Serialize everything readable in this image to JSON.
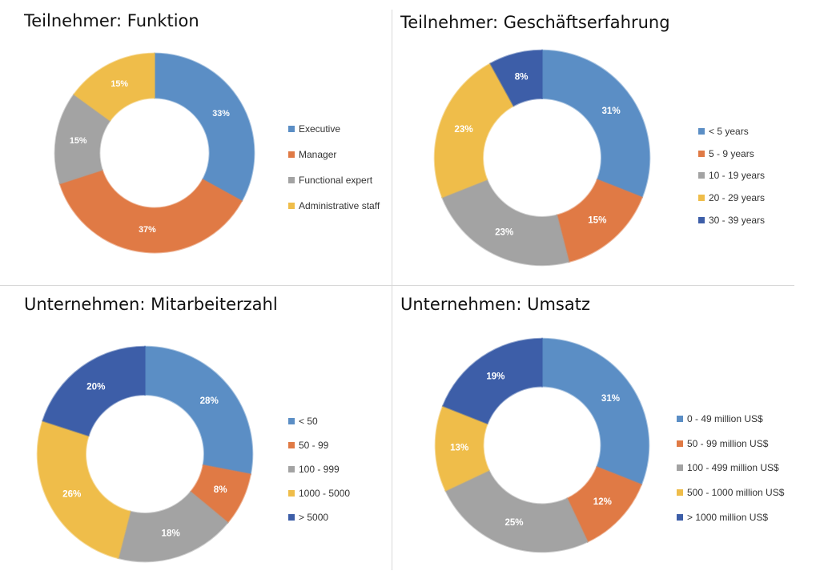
{
  "colors": {
    "blue": "#5b8ec5",
    "orange": "#e07a45",
    "gray": "#a3a3a3",
    "yellow": "#efbd4a",
    "navy": "#3d5ea8",
    "divider": "#d8d8d8"
  },
  "chart_data": [
    {
      "type": "pie",
      "donut": true,
      "title": "Teilnehmer: Funktion",
      "legend_position": "right",
      "categories": [
        "Executive",
        "Manager",
        "Functional expert",
        "Administrative staff"
      ],
      "values": [
        33,
        37,
        15,
        15
      ],
      "labels": [
        "33%",
        "37%",
        "15%",
        "15%"
      ],
      "colors": [
        "#5b8ec5",
        "#e07a45",
        "#a3a3a3",
        "#efbd4a"
      ]
    },
    {
      "type": "pie",
      "donut": true,
      "title": "Teilnehmer: Geschäftserfahrung",
      "legend_position": "right",
      "categories": [
        "< 5 years",
        "5 - 9 years",
        "10 - 19 years",
        "20 - 29 years",
        "30 - 39 years"
      ],
      "values": [
        31,
        15,
        23,
        23,
        8
      ],
      "labels": [
        "31%",
        "15%",
        "23%",
        "23%",
        "8%"
      ],
      "colors": [
        "#5b8ec5",
        "#e07a45",
        "#a3a3a3",
        "#efbd4a",
        "#3d5ea8"
      ]
    },
    {
      "type": "pie",
      "donut": true,
      "title": "Unternehmen: Mitarbeiterzahl",
      "legend_position": "right",
      "categories": [
        "< 50",
        "50 - 99",
        "100 - 999",
        "1000 - 5000",
        "> 5000"
      ],
      "values": [
        28,
        8,
        18,
        26,
        20
      ],
      "labels": [
        "28%",
        "8%",
        "18%",
        "26%",
        "20%"
      ],
      "colors": [
        "#5b8ec5",
        "#e07a45",
        "#a3a3a3",
        "#efbd4a",
        "#3d5ea8"
      ]
    },
    {
      "type": "pie",
      "donut": true,
      "title": "Unternehmen: Umsatz",
      "legend_position": "right",
      "categories": [
        "0 - 49 million US$",
        "50 - 99 million US$",
        "100 - 499 million US$",
        "500 - 1000 million US$",
        "> 1000 million US$"
      ],
      "values": [
        31,
        12,
        25,
        13,
        19
      ],
      "labels": [
        "31%",
        "12%",
        "25%",
        "13%",
        "19%"
      ],
      "colors": [
        "#5b8ec5",
        "#e07a45",
        "#a3a3a3",
        "#efbd4a",
        "#3d5ea8"
      ]
    }
  ]
}
